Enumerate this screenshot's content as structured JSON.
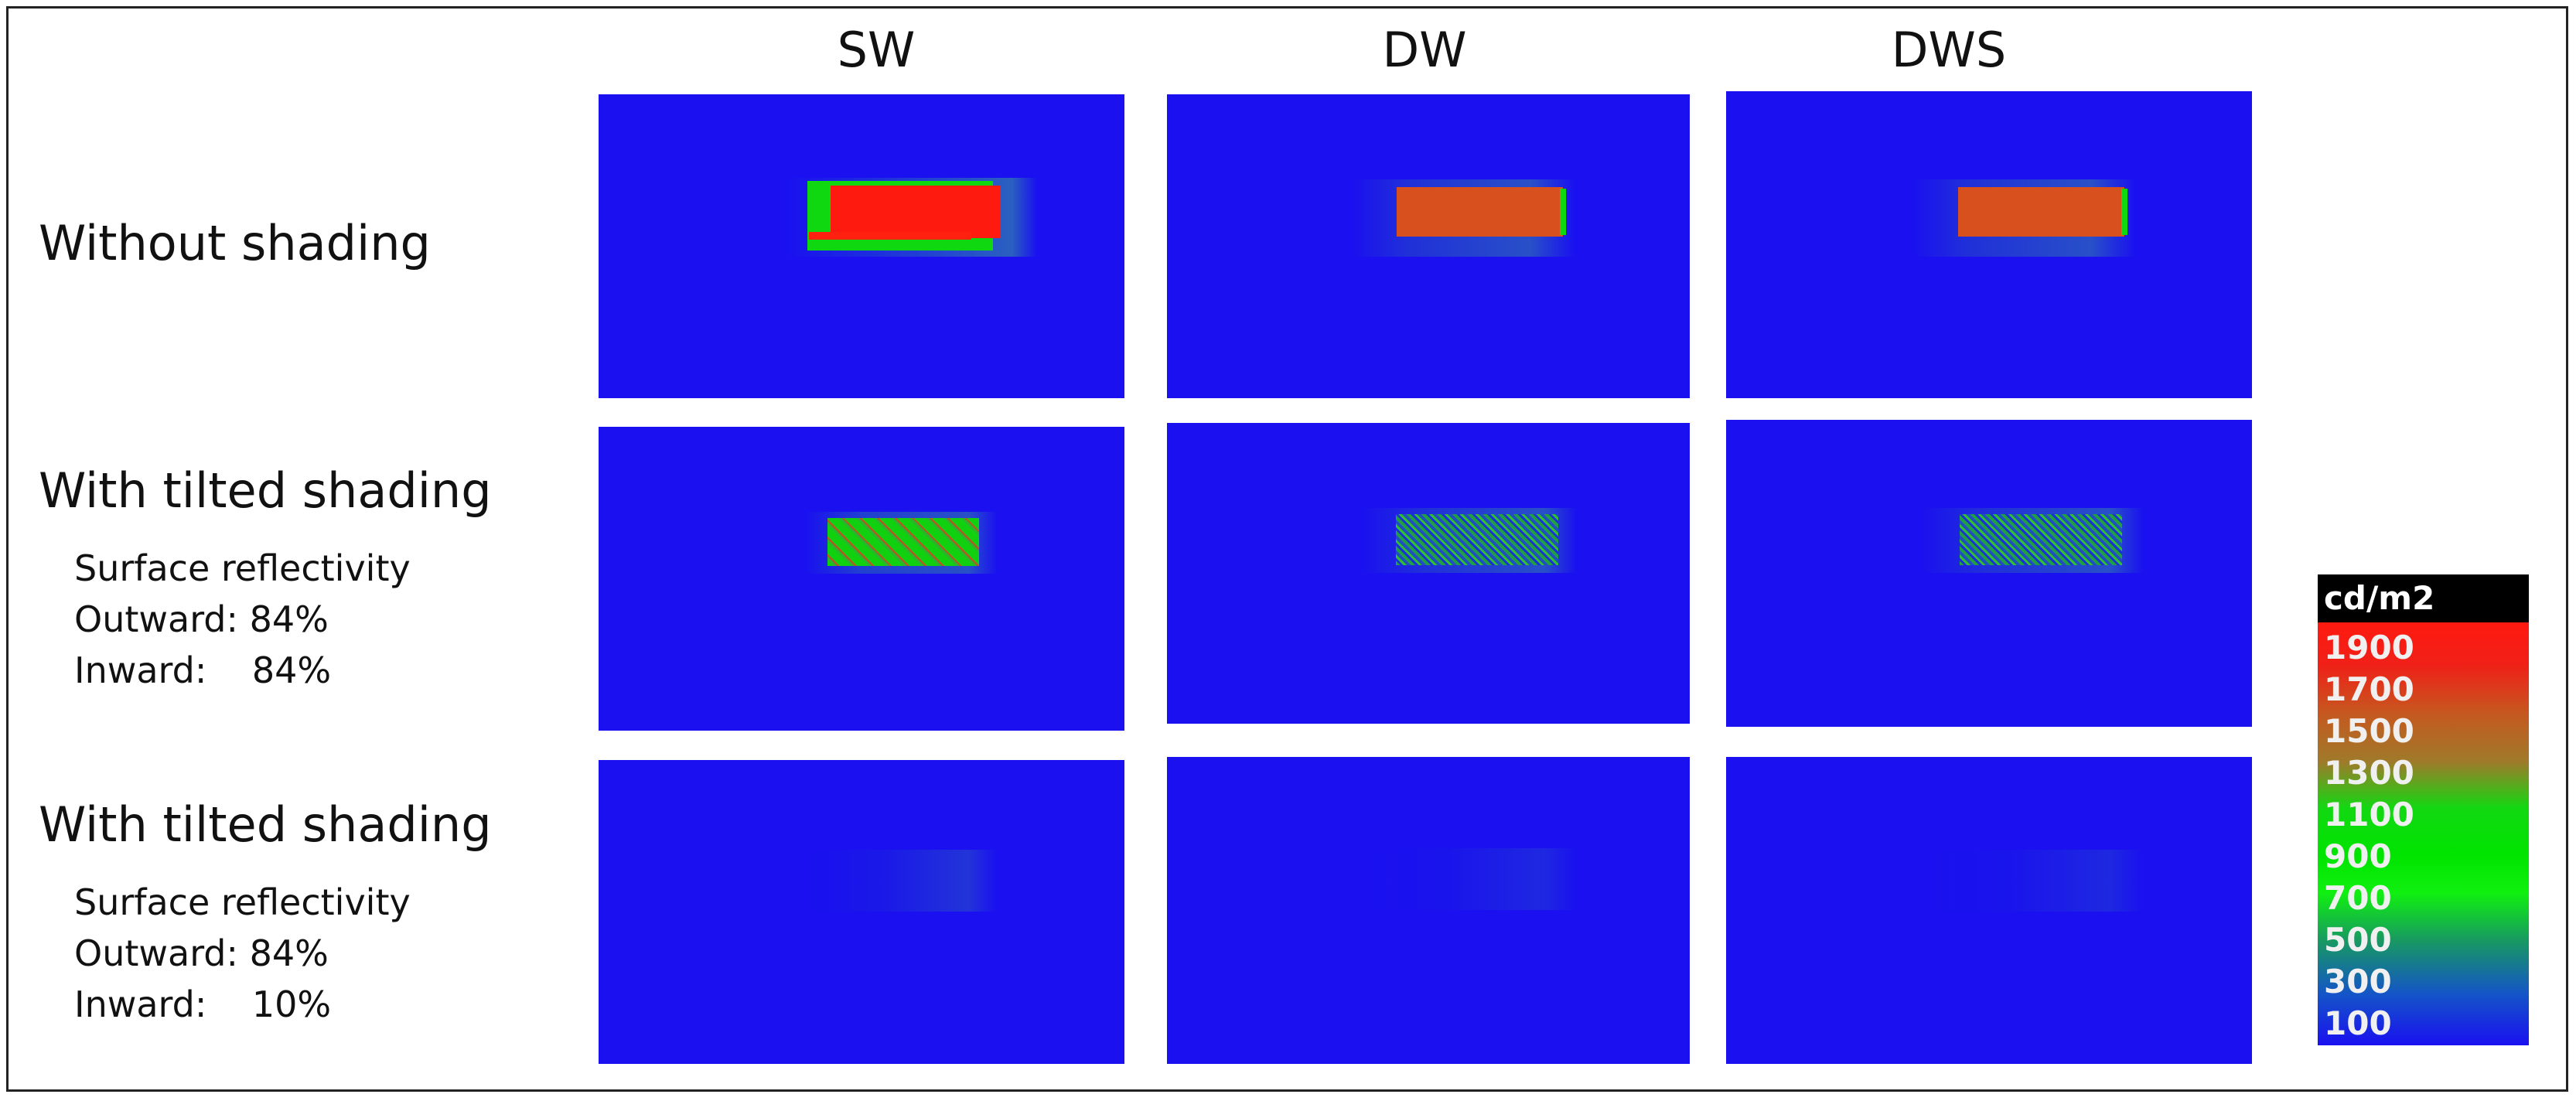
{
  "columns": [
    "SW",
    "DW",
    "DWS"
  ],
  "rows": [
    {
      "title": "Without shading",
      "lines": []
    },
    {
      "title": "With tilted shading",
      "lines": [
        "Surface reflectivity",
        "Outward: 84%",
        "Inward:    84%"
      ]
    },
    {
      "title": "With tilted shading",
      "lines": [
        "Surface reflectivity",
        "Outward: 84%",
        "Inward:    10%"
      ]
    }
  ],
  "legend": {
    "unit": "cd/m2",
    "ticks": [
      "1900",
      "1700",
      "1500",
      "1300",
      "1100",
      "900",
      "700",
      "500",
      "300",
      "100"
    ]
  },
  "colors": {
    "background_blue": "#1a10f0",
    "high_red": "#ff1a10",
    "mid_green": "#00e400"
  }
}
